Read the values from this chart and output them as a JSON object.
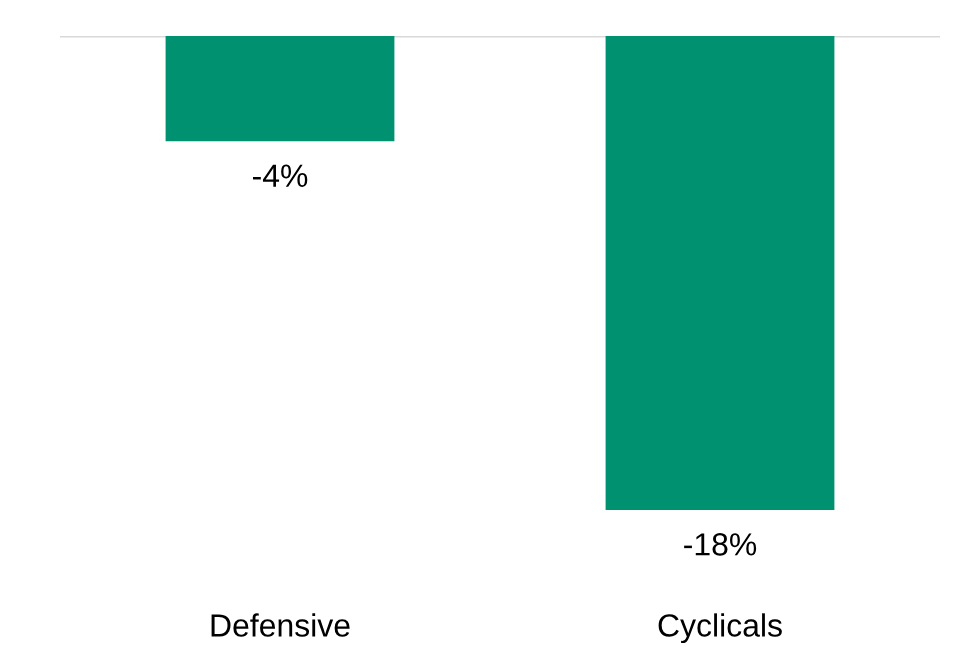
{
  "chart_data": {
    "type": "bar",
    "categories": [
      "Defensive",
      "Cyclicals"
    ],
    "values": [
      -4,
      -18
    ],
    "value_labels": [
      "-4%",
      "-18%"
    ],
    "color": "#009270"
  }
}
